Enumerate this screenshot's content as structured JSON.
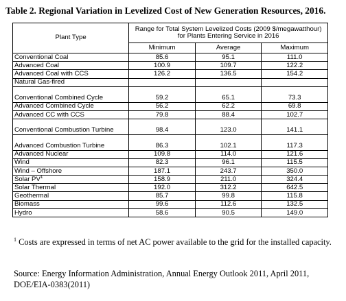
{
  "title": "Table 2. Regional Variation in Levelized Cost of New Generation Resources, 2016.",
  "table": {
    "header_plant": "Plant Type",
    "header_range": "Range for Total System Levelized  Costs (2009 $/megawatthour) for Plants Entering Service in 2016",
    "header_min": "Minimum",
    "header_avg": "Average",
    "header_max": "Maximum",
    "rows": [
      {
        "label": "Conventional Coal",
        "min": "85.6",
        "avg": "95.1",
        "max": "111.0"
      },
      {
        "label": "Advanced Coal",
        "min": "100.9",
        "avg": "109.7",
        "max": "122.2"
      },
      {
        "label": "Advanced Coal with CCS",
        "min": "126.2",
        "avg": "136.5",
        "max": "154.2"
      },
      {
        "label": "Natural Gas-fired",
        "min": "",
        "avg": "",
        "max": ""
      },
      {
        "label": "Conventional Combined Cycle",
        "min": "59.2",
        "avg": "65.1",
        "max": "73.3"
      },
      {
        "label": "Advanced Combined Cycle",
        "min": "56.2",
        "avg": "62.2",
        "max": "69.8"
      },
      {
        "label": "Advanced CC with CCS",
        "min": "79.8",
        "avg": "88.4",
        "max": "102.7"
      },
      {
        "label": "Conventional Combustion Turbine",
        "min": "98.4",
        "avg": "123.0",
        "max": "141.1"
      },
      {
        "label": "Advanced Combustion Turbine",
        "min": "86.3",
        "avg": "102.1",
        "max": "117.3"
      },
      {
        "label": "Advanced Nuclear",
        "min": "109.8",
        "avg": "114.0",
        "max": "121.6"
      },
      {
        "label": "Wind",
        "min": "82.3",
        "avg": "96.1",
        "max": "115.5"
      },
      {
        "label": "Wind – Offshore",
        "min": "187.1",
        "avg": "243.7",
        "max": "350.0"
      },
      {
        "label": "Solar PV",
        "label_sup": "1",
        "min": "158.9",
        "avg": "211.0",
        "max": "324.4"
      },
      {
        "label": "Solar Thermal",
        "min": "192.0",
        "avg": "312.2",
        "max": "642.5"
      },
      {
        "label": "Geothermal",
        "min": "85.7",
        "avg": "99.8",
        "max": "115.8"
      },
      {
        "label": "Biomass",
        "min": "99.6",
        "avg": "112.6",
        "max": "132.5"
      },
      {
        "label": "Hydro",
        "min": "58.6",
        "avg": "90.5",
        "max": "149.0"
      }
    ]
  },
  "footnote": {
    "marker": "1",
    "text": " Costs are expressed in terms of net AC power available to the grid for the installed capacity."
  },
  "source": "Source:  Energy Information Administration, Annual Energy Outlook 2011, April 2011, DOE/EIA-0383(2011)"
}
